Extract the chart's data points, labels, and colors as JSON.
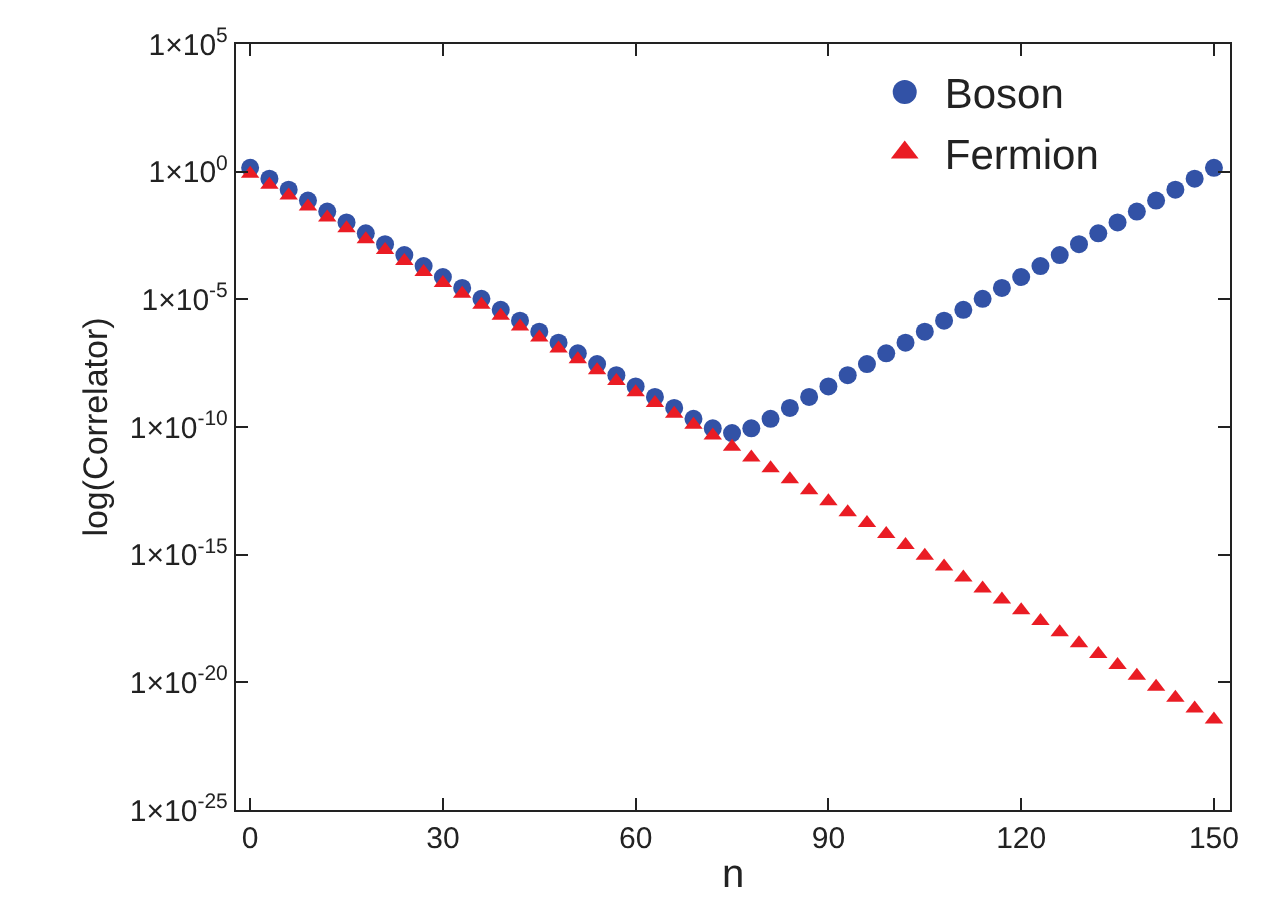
{
  "chart_data": {
    "type": "scatter",
    "xlabel": "n",
    "ylabel": "log(Correlator)",
    "log": "y",
    "grid": false,
    "legend": "top right",
    "x": [
      0,
      3,
      6,
      9,
      12,
      15,
      18,
      21,
      24,
      27,
      30,
      33,
      36,
      39,
      42,
      45,
      48,
      51,
      54,
      57,
      60,
      63,
      66,
      69,
      72,
      75,
      78,
      81,
      84,
      87,
      90,
      93,
      96,
      99,
      102,
      105,
      108,
      111,
      114,
      117,
      120,
      123,
      126,
      129,
      132,
      135,
      138,
      141,
      144,
      147,
      150
    ],
    "xlim": [
      -2.2,
      152.5
    ],
    "xticks": [
      0,
      30,
      60,
      90,
      120,
      150
    ],
    "ylim": [
      1e-25,
      100000.0
    ],
    "yticks": [
      {
        "value": 100000.0,
        "label": "1×10$^{5}$"
      },
      {
        "value": 1,
        "label": "1×10$^{0}$"
      },
      {
        "value": 1e-05,
        "label": "1×10$^{-5}$"
      },
      {
        "value": 1e-10,
        "label": "1×10$^{-10}$"
      },
      {
        "value": 1e-15,
        "label": "1×10$^{-15}$"
      },
      {
        "value": 1e-20,
        "label": "1×10$^{-20}$"
      },
      {
        "value": 1e-25,
        "label": "1×10$^{-25}$"
      }
    ],
    "series": [
      {
        "name": "Boson",
        "color": "#3252a6",
        "marker": "circle",
        "values": [
          1.41,
          0.53,
          0.197,
          0.074,
          0.0275,
          0.0103,
          0.00384,
          0.00145,
          0.00054,
          0.0002,
          7.5e-05,
          2.8e-05,
          1.05e-05,
          3.9e-06,
          1.46e-06,
          5.4e-07,
          2e-07,
          7.7e-08,
          2.9e-08,
          1.07e-08,
          3.9e-09,
          1.5e-09,
          5.6e-10,
          2.1e-10,
          8.9e-11,
          5.8e-11,
          8.9e-11,
          2.1e-10,
          5.6e-10,
          1.5e-09,
          3.9e-09,
          1.07e-08,
          2.9e-08,
          7.7e-08,
          2e-07,
          5.4e-07,
          1.46e-06,
          3.9e-06,
          1.05e-05,
          2.8e-05,
          7.5e-05,
          0.0002,
          0.00054,
          0.00145,
          0.00384,
          0.0103,
          0.0275,
          0.074,
          0.197,
          0.53,
          1.41
        ]
      },
      {
        "name": "Fermion",
        "color": "#ea1c24",
        "marker": "triangle",
        "values": [
          0.83,
          0.31,
          0.116,
          0.0434,
          0.0162,
          0.00606,
          0.00226,
          0.00085,
          0.00032,
          0.000118,
          4.4e-05,
          1.65e-05,
          6.2e-06,
          2.3e-06,
          8.6e-07,
          3.2e-07,
          1.2e-07,
          4.5e-08,
          1.68e-08,
          6.3e-09,
          2.3e-09,
          8.8e-10,
          3.3e-10,
          1.22e-10,
          4.6e-11,
          1.7e-11,
          6.4e-12,
          2.4e-12,
          8.9e-13,
          3.3e-13,
          1.24e-13,
          4.6e-14,
          1.74e-14,
          6.5e-15,
          2.4e-15,
          9.1e-16,
          3.4e-16,
          1.27e-16,
          4.7e-17,
          1.77e-17,
          6.6e-18,
          2.5e-18,
          9.2e-19,
          3.4e-19,
          1.29e-19,
          4.8e-20,
          1.8e-20,
          6.7e-21,
          2.5e-21,
          9.4e-22,
          3.5e-22
        ]
      }
    ]
  }
}
